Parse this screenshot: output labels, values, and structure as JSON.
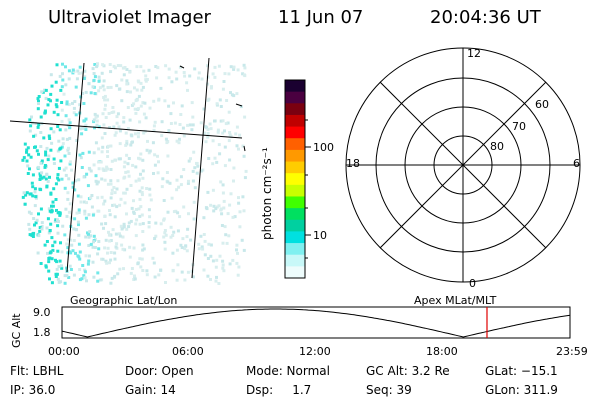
{
  "header": {
    "instrument": "Ultraviolet Imager",
    "date": "11 Jun 07",
    "time": "20:04:36 UT"
  },
  "colorbar": {
    "unit_label": "photon cm⁻²s⁻¹",
    "ticks": [
      "100",
      "10"
    ],
    "colors_top_to_bottom": [
      "#1a0030",
      "#4a0040",
      "#7a0010",
      "#c00000",
      "#ff0000",
      "#ff6000",
      "#ff9900",
      "#ffcc00",
      "#ffff00",
      "#c8ff00",
      "#40ff00",
      "#00e060",
      "#00d0a0",
      "#00e0e0",
      "#80f0f0",
      "#c8f8f8",
      "#eefcfc"
    ]
  },
  "polar_plot": {
    "mlt_labels": [
      "12",
      "18",
      "6",
      "0"
    ],
    "lat_labels": [
      "60",
      "70",
      "80"
    ]
  },
  "orbit": {
    "y_axis_label": "GC Alt",
    "y_ticks": [
      "9.0",
      "1.8"
    ],
    "left_title": "Geographic Lat/Lon",
    "right_title": "Apex MLat/MLT",
    "time_ticks": [
      "00:00",
      "06:00",
      "12:00",
      "18:00",
      "23:59"
    ],
    "current_time_fraction": 0.8366
  },
  "info": {
    "flt": "Flt: LBHL",
    "door": "Door: Open",
    "mode": "Mode: Normal",
    "gc_alt": "GC Alt: 3.2 Re",
    "glat": "GLat: −15.1",
    "ip": "IP: 36.0",
    "gain": "Gain: 14",
    "dsp": "Dsp:     1.7",
    "seq": "Seq: 39",
    "glon": "GLon: 311.9"
  }
}
